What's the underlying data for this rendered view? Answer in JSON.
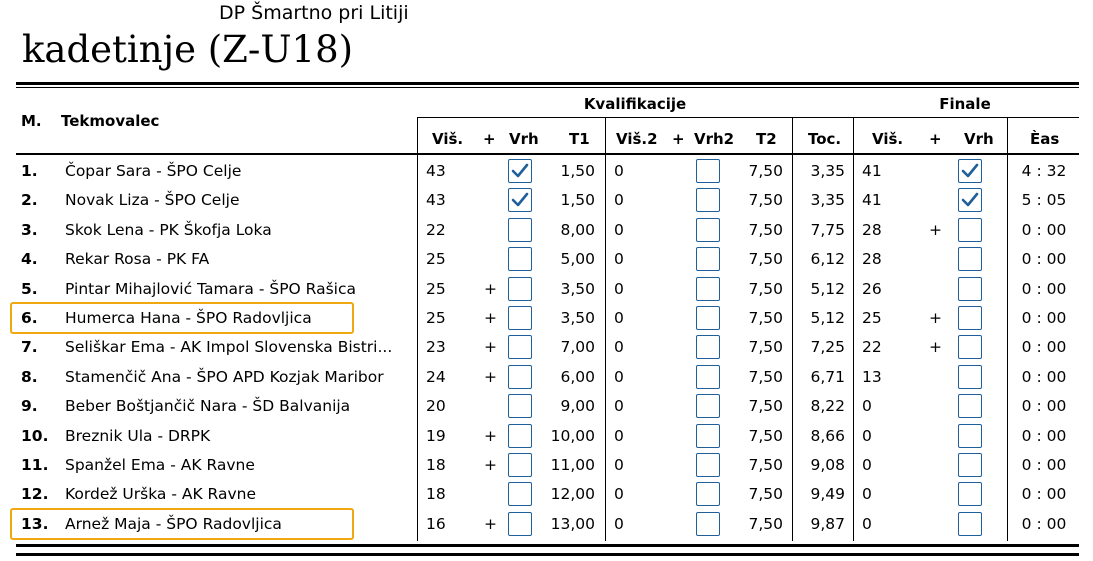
{
  "header": {
    "subtitle": "DP Šmartno pri Litiji",
    "title": "kadetinje (Z-U18)"
  },
  "columns": {
    "rank": "M.",
    "competitor": "Tekmovalec",
    "group_qual": "Kvalifikacije",
    "group_final": "Finale",
    "q_height": "Viš.",
    "q_plus": "+",
    "q_top": "Vrh",
    "q_t1": "T1",
    "q_height2": "Viš.2",
    "q_plus2": "+",
    "q_top2": "Vrh2",
    "q_t2": "T2",
    "points": "Toc.",
    "f_height": "Viš.",
    "f_plus": "+",
    "f_top": "Vrh",
    "time": "Èas"
  },
  "rows": [
    {
      "rank": "1.",
      "name": "Čopar Sara - ŠPO Celje",
      "q_h": "43",
      "q_plus": "",
      "q_top": true,
      "t1": "1,50",
      "h2": "0",
      "plus2": "",
      "top2": false,
      "t2": "7,50",
      "pts": "3,35",
      "f_h": "41",
      "f_plus": "",
      "f_top": true,
      "time": "4 : 32",
      "highlight": false
    },
    {
      "rank": "2.",
      "name": "Novak Liza - ŠPO Celje",
      "q_h": "43",
      "q_plus": "",
      "q_top": true,
      "t1": "1,50",
      "h2": "0",
      "plus2": "",
      "top2": false,
      "t2": "7,50",
      "pts": "3,35",
      "f_h": "41",
      "f_plus": "",
      "f_top": true,
      "time": "5 : 05",
      "highlight": false
    },
    {
      "rank": "3.",
      "name": "Skok Lena - PK Škofja Loka",
      "q_h": "22",
      "q_plus": "",
      "q_top": false,
      "t1": "8,00",
      "h2": "0",
      "plus2": "",
      "top2": false,
      "t2": "7,50",
      "pts": "7,75",
      "f_h": "28",
      "f_plus": "+",
      "f_top": false,
      "time": "0 : 00",
      "highlight": false
    },
    {
      "rank": "4.",
      "name": "Rekar Rosa - PK FA",
      "q_h": "25",
      "q_plus": "",
      "q_top": false,
      "t1": "5,00",
      "h2": "0",
      "plus2": "",
      "top2": false,
      "t2": "7,50",
      "pts": "6,12",
      "f_h": "28",
      "f_plus": "",
      "f_top": false,
      "time": "0 : 00",
      "highlight": false
    },
    {
      "rank": "5.",
      "name": "Pintar Mihajlović Tamara - ŠPO Rašica",
      "q_h": "25",
      "q_plus": "+",
      "q_top": false,
      "t1": "3,50",
      "h2": "0",
      "plus2": "",
      "top2": false,
      "t2": "7,50",
      "pts": "5,12",
      "f_h": "26",
      "f_plus": "",
      "f_top": false,
      "time": "0 : 00",
      "highlight": false
    },
    {
      "rank": "6.",
      "name": "Humerca Hana - ŠPO Radovljica",
      "q_h": "25",
      "q_plus": "+",
      "q_top": false,
      "t1": "3,50",
      "h2": "0",
      "plus2": "",
      "top2": false,
      "t2": "7,50",
      "pts": "5,12",
      "f_h": "25",
      "f_plus": "+",
      "f_top": false,
      "time": "0 : 00",
      "highlight": true
    },
    {
      "rank": "7.",
      "name": "Seliškar Ema - AK Impol Slovenska Bistri...",
      "q_h": "23",
      "q_plus": "+",
      "q_top": false,
      "t1": "7,00",
      "h2": "0",
      "plus2": "",
      "top2": false,
      "t2": "7,50",
      "pts": "7,25",
      "f_h": "22",
      "f_plus": "+",
      "f_top": false,
      "time": "0 : 00",
      "highlight": false
    },
    {
      "rank": "8.",
      "name": "Stamenčič Ana - ŠPO APD Kozjak Maribor",
      "q_h": "24",
      "q_plus": "+",
      "q_top": false,
      "t1": "6,00",
      "h2": "0",
      "plus2": "",
      "top2": false,
      "t2": "7,50",
      "pts": "6,71",
      "f_h": "13",
      "f_plus": "",
      "f_top": false,
      "time": "0 : 00",
      "highlight": false
    },
    {
      "rank": "9.",
      "name": "Beber Boštjančič Nara - ŠD Balvanija",
      "q_h": "20",
      "q_plus": "",
      "q_top": false,
      "t1": "9,00",
      "h2": "0",
      "plus2": "",
      "top2": false,
      "t2": "7,50",
      "pts": "8,22",
      "f_h": "0",
      "f_plus": "",
      "f_top": false,
      "time": "0 : 00",
      "highlight": false
    },
    {
      "rank": "10.",
      "name": "Breznik Ula - DRPK",
      "q_h": "19",
      "q_plus": "+",
      "q_top": false,
      "t1": "10,00",
      "h2": "0",
      "plus2": "",
      "top2": false,
      "t2": "7,50",
      "pts": "8,66",
      "f_h": "0",
      "f_plus": "",
      "f_top": false,
      "time": "0 : 00",
      "highlight": false
    },
    {
      "rank": "11.",
      "name": "Spanžel Ema - AK Ravne",
      "q_h": "18",
      "q_plus": "+",
      "q_top": false,
      "t1": "11,00",
      "h2": "0",
      "plus2": "",
      "top2": false,
      "t2": "7,50",
      "pts": "9,08",
      "f_h": "0",
      "f_plus": "",
      "f_top": false,
      "time": "0 : 00",
      "highlight": false
    },
    {
      "rank": "12.",
      "name": "Kordež Urška - AK Ravne",
      "q_h": "18",
      "q_plus": "",
      "q_top": false,
      "t1": "12,00",
      "h2": "0",
      "plus2": "",
      "top2": false,
      "t2": "7,50",
      "pts": "9,49",
      "f_h": "0",
      "f_plus": "",
      "f_top": false,
      "time": "0 : 00",
      "highlight": false
    },
    {
      "rank": "13.",
      "name": "Arnež Maja - ŠPO Radovljica",
      "q_h": "16",
      "q_plus": "+",
      "q_top": false,
      "t1": "13,00",
      "h2": "0",
      "plus2": "",
      "top2": false,
      "t2": "7,50",
      "pts": "9,87",
      "f_h": "0",
      "f_plus": "",
      "f_top": false,
      "time": "0 : 00",
      "highlight": true
    }
  ],
  "colors": {
    "highlight": "#f0a810",
    "checkbox_border": "#1f5f9a",
    "checkmark": "#1f5f9a"
  }
}
